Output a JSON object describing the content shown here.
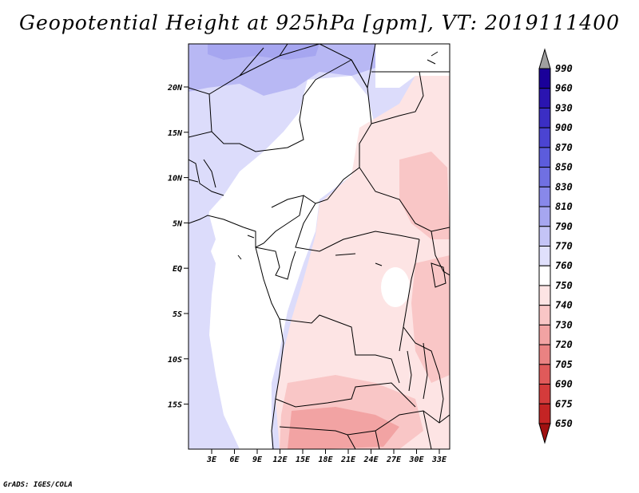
{
  "title": "Geopotential Height at 925hPa [gpm], VT: 2019111400",
  "footer": "GrADS: IGES/COLA",
  "map": {
    "lat_labels": [
      "20N",
      "15N",
      "10N",
      "5N",
      "EQ",
      "5S",
      "10S",
      "15S"
    ],
    "lon_labels": [
      "3E",
      "6E",
      "9E",
      "12E",
      "15E",
      "18E",
      "21E",
      "24E",
      "27E",
      "30E",
      "33E"
    ]
  },
  "colorbar": {
    "levels": [
      "990",
      "960",
      "930",
      "900",
      "870",
      "850",
      "830",
      "810",
      "790",
      "770",
      "760",
      "750",
      "740",
      "730",
      "720",
      "705",
      "690",
      "675",
      "650"
    ],
    "colors": [
      "#1a0099",
      "#2a14b0",
      "#3b2ec4",
      "#4b44d2",
      "#5c5cdc",
      "#7070e2",
      "#8888ea",
      "#a6a6f0",
      "#c4c4f6",
      "#e0e0fc",
      "#ffffff",
      "#fde4e4",
      "#f9c6c6",
      "#f2a3a3",
      "#ea8282",
      "#e05a5a",
      "#d43b3b",
      "#c42424",
      "#ae1414"
    ],
    "top_arrow_color": "#a0a0a0",
    "bottom_arrow_color": "#a01010"
  }
}
